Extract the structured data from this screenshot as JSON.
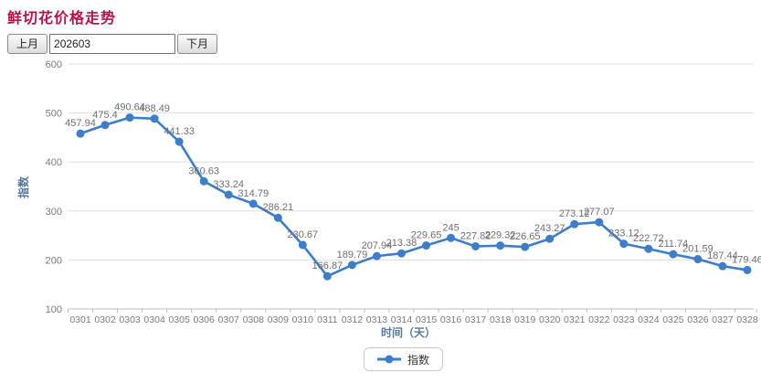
{
  "title": "鲜切花价格走势",
  "controls": {
    "prev_button": "上月",
    "month_input": "202603",
    "next_button": "下月"
  },
  "chart_data": {
    "type": "line",
    "categories": [
      "0301",
      "0302",
      "0303",
      "0304",
      "0305",
      "0306",
      "0307",
      "0308",
      "0309",
      "0310",
      "0311",
      "0312",
      "0313",
      "0314",
      "0315",
      "0316",
      "0317",
      "0318",
      "0319",
      "0320",
      "0321",
      "0322",
      "0323",
      "0324",
      "0325",
      "0326",
      "0327",
      "0328"
    ],
    "series": [
      {
        "name": "指数",
        "values": [
          457.94,
          475.4,
          490.64,
          488.49,
          441.33,
          360.63,
          333.24,
          314.79,
          286.21,
          230.67,
          166.87,
          189.79,
          207.94,
          213.38,
          229.65,
          245,
          227.82,
          229.32,
          226.65,
          243.27,
          273.12,
          277.07,
          233.12,
          222.72,
          211.74,
          201.59,
          187.44,
          179.46
        ],
        "labels": [
          "457.94",
          "475.4",
          "490.64",
          "488.49",
          "441.33",
          "360.63",
          "333.24",
          "314.79",
          "286.21",
          "230.67",
          "166.87",
          "189.79",
          "207.94",
          "213.38",
          "229.65",
          "245",
          "227.82",
          "229.32",
          "226.65",
          "243.27",
          "273.12",
          "277.07",
          "233.12",
          "222.72",
          "211.74",
          "201.59",
          "187.44",
          "179.46"
        ]
      }
    ],
    "xlabel": "时间（天）",
    "ylabel": "指数",
    "ylim": [
      100,
      600
    ],
    "yticks": [
      100,
      200,
      300,
      400,
      500,
      600
    ],
    "grid": true,
    "legend_position": "bottom",
    "colors": {
      "line": "#3e7dc9",
      "point": "#3e7dc9",
      "data_label": "#6f6f6f",
      "tick_label": "#7b7b7b",
      "axis_title": "#54789b",
      "gridline": "#e0e0e0",
      "axis_line": "#bcbcbc",
      "title": "#b7114d"
    }
  }
}
